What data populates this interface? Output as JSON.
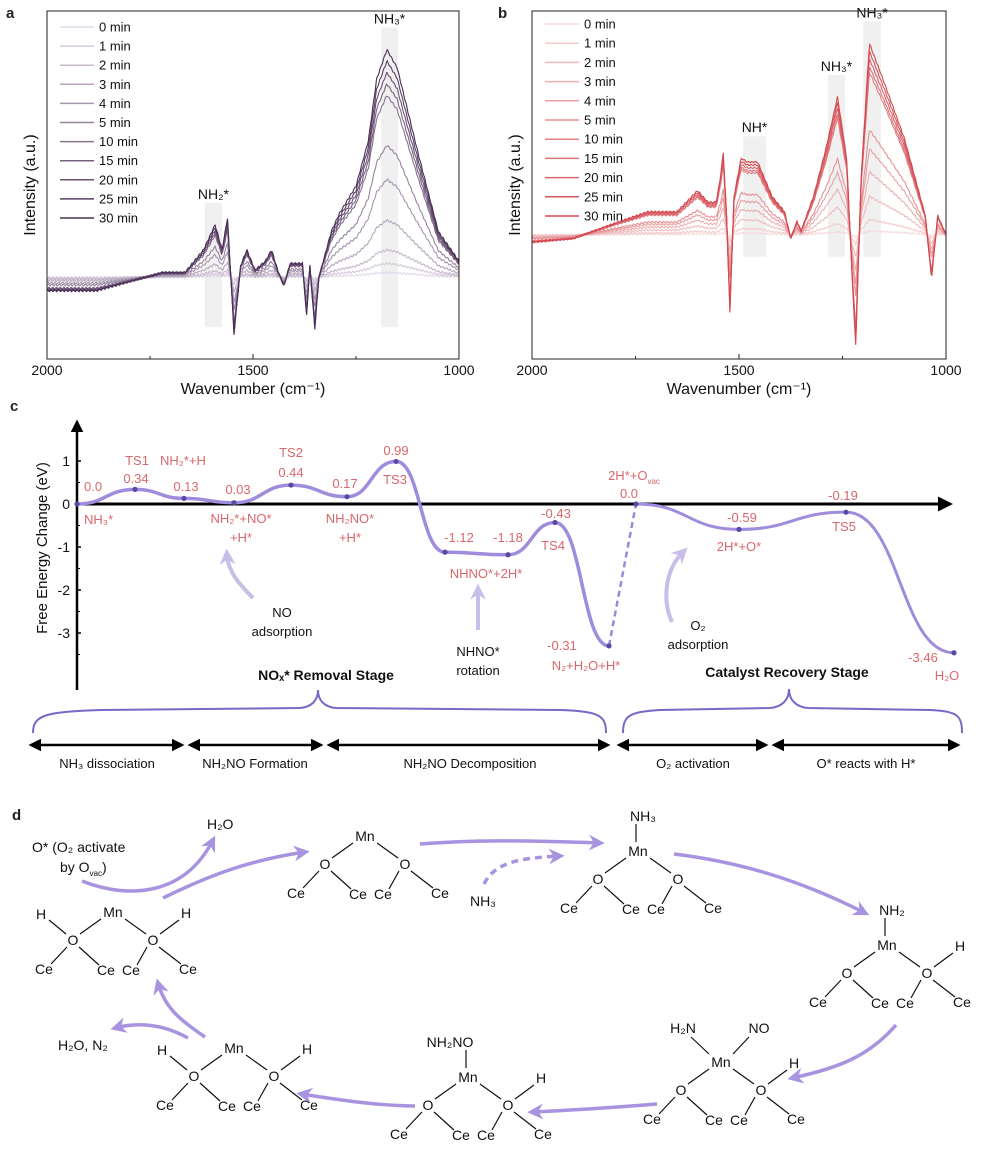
{
  "panel_labels": {
    "a": "a",
    "b": "b",
    "c": "c",
    "d": "d"
  },
  "chart_data": [
    {
      "type": "line",
      "panel": "a",
      "xlabel": "Wavenumber (cm⁻¹)",
      "ylabel": "Intensity (a.u.)",
      "xlim": [
        2000,
        1000
      ],
      "ylim": [
        -0.36,
        1.17
      ],
      "xticks": [
        "2000",
        "1500",
        "1000"
      ],
      "minor_xticks": [
        1750,
        1250
      ],
      "legend_position": "top-left",
      "color_light": "#e4dbe9",
      "color_dark": "#4a2e55",
      "series_names": [
        "0 min",
        "1 min",
        "2 min",
        "3 min",
        "4 min",
        "5 min",
        "10 min",
        "15 min",
        "20 min",
        "25 min",
        "30 min"
      ],
      "series_scale": [
        0.02,
        0.06,
        0.12,
        0.25,
        0.43,
        0.58,
        0.8,
        0.85,
        0.9,
        0.95,
        1.0
      ],
      "reference_curve": {
        "x": [
          2000,
          1880,
          1800,
          1720,
          1665,
          1620,
          1592,
          1575,
          1562,
          1546,
          1530,
          1515,
          1495,
          1470,
          1455,
          1440,
          1425,
          1410,
          1380,
          1370,
          1362,
          1350,
          1340,
          1310,
          1290,
          1250,
          1220,
          1200,
          1175,
          1150,
          1100,
          1050,
          1000
        ],
        "y": [
          -0.06,
          -0.06,
          -0.02,
          0.02,
          0.02,
          0.12,
          0.23,
          0.12,
          0.26,
          -0.25,
          0.05,
          0.12,
          0.03,
          0.07,
          0.12,
          0.03,
          -0.04,
          0.06,
          0.06,
          -0.17,
          0.05,
          -0.23,
          0.0,
          0.2,
          0.28,
          0.4,
          0.6,
          0.87,
          1.0,
          0.92,
          0.55,
          0.2,
          0.07
        ]
      },
      "bands": [
        {
          "label": "NH₂*",
          "from": 1617,
          "to": 1575
        },
        {
          "label": "NH₃*",
          "from": 1189,
          "to": 1148
        }
      ]
    },
    {
      "type": "line",
      "panel": "b",
      "xlabel": "Wavenumber (cm⁻¹)",
      "ylabel": "Intensity (a.u.)",
      "xlim": [
        2000,
        1000
      ],
      "ylim": [
        -0.65,
        1.17
      ],
      "xticks": [
        "2000",
        "1500",
        "1000"
      ],
      "minor_xticks": [
        1750,
        1250
      ],
      "legend_position": "top-left",
      "color_light": "#f6d9da",
      "color_dark": "#d4484f",
      "series_names": [
        "0 min",
        "1 min",
        "2 min",
        "3 min",
        "4 min",
        "5 min",
        "10 min",
        "15 min",
        "20 min",
        "25 min",
        "30 min"
      ],
      "series_scale": [
        0.02,
        0.08,
        0.2,
        0.33,
        0.45,
        0.55,
        0.85,
        0.88,
        0.92,
        0.96,
        1.0
      ],
      "reference_curve": {
        "x": [
          2000,
          1900,
          1800,
          1720,
          1650,
          1600,
          1575,
          1555,
          1545,
          1538,
          1530,
          1522,
          1512,
          1495,
          1480,
          1455,
          1420,
          1390,
          1375,
          1360,
          1350,
          1320,
          1290,
          1262,
          1240,
          1225,
          1218,
          1205,
          1185,
          1150,
          1100,
          1050,
          1035,
          1020,
          1000
        ],
        "y": [
          -0.04,
          -0.02,
          0.06,
          0.12,
          0.12,
          0.23,
          0.17,
          0.17,
          0.3,
          0.43,
          0.1,
          -0.41,
          0.2,
          0.4,
          0.38,
          0.38,
          0.2,
          0.12,
          -0.02,
          0.07,
          0.02,
          0.2,
          0.45,
          0.72,
          0.4,
          -0.3,
          -0.58,
          0.3,
          1.0,
          0.8,
          0.5,
          0.1,
          -0.23,
          0.1,
          0.0
        ]
      },
      "bands": [
        {
          "label": "NH*",
          "from": 1490,
          "to": 1435
        },
        {
          "label": "NH₃*",
          "from": 1285,
          "to": 1244
        },
        {
          "label": "NH₃*",
          "from": 1200,
          "to": 1157
        }
      ]
    },
    {
      "type": "line",
      "panel": "c",
      "ylabel": "Free Energy Change (eV)",
      "yticks": [
        "1",
        "0",
        "-1",
        "-2",
        "-3"
      ],
      "ylim": [
        -4,
        1.8
      ],
      "line_color": "#9d88d8",
      "label_color": "#d9676b",
      "removal_stage_energies": [
        0.0,
        0.34,
        0.13,
        0.03,
        0.44,
        0.17,
        0.99,
        -1.12,
        -1.18,
        -0.43,
        -3.3
      ],
      "recovery_stage_energies": [
        0.0,
        -0.59,
        -0.19,
        -3.46
      ],
      "energy_labels": {
        "e0": "0.0",
        "ts1": "TS1",
        "e034": "0.34",
        "nh2h": "NH₂*+H",
        "e013": "0.13",
        "e003": "0.03",
        "ts2": "TS2",
        "e044": "0.44",
        "e017": "0.17",
        "e099": "0.99",
        "ts3": "TS3",
        "nh3": "NH₃*",
        "nh2no_a": "NH₂*+NO*",
        "nh2no_b": "+H*",
        "nh2no2_a": "NH₂NO*",
        "nh2no2_b": "+H*",
        "e112": "-1.12",
        "e118": "-1.18",
        "nhno2h": "NHNO*+2H*",
        "e043": "-0.43",
        "ts4": "TS4",
        "ovac_main": "2H*+O",
        "ovac_sub": "vac",
        "e00b": "0.0",
        "e059": "-0.59",
        "h2o_star": "2H*+O*",
        "e019": "-0.19",
        "ts5": "TS5",
        "e031": "-0.31",
        "n2h2o": "N₂+H₂O+H*",
        "e346": "-3.46",
        "h2o": "H₂O"
      },
      "annotations": {
        "no_1": "NO",
        "no_2": "adsorption",
        "nhno_1": "NHNO*",
        "nhno_2": "rotation",
        "o2_1": "O₂",
        "o2_2": "adsorption"
      },
      "stages": {
        "removal": "NOₓ* Removal Stage",
        "recovery": "Catalyst Recovery Stage"
      },
      "phases": [
        "NH₃ dissociation",
        "NH₂NO Formation",
        "NH₂NO Decomposition",
        "O₂ activation",
        "O* reacts with H*"
      ]
    }
  ],
  "scheme": {
    "arrow_color": "#a893e0",
    "o_star_1": "O* (O₂ activate",
    "o_star_2a": "by O",
    "o_star_2b": "vac",
    "o_star_2c": ")",
    "h2o": "H₂O",
    "nh3": "NH₃",
    "h2o_n2": "H₂O, N₂",
    "atoms": {
      "mn": "Mn",
      "o": "O",
      "ce": "Ce",
      "h": "H"
    },
    "ligands": {
      "nh3": "NH₃",
      "nh2": "NH₂",
      "h2n": "H₂N",
      "no": "NO",
      "nh2no": "NH₂NO"
    }
  }
}
